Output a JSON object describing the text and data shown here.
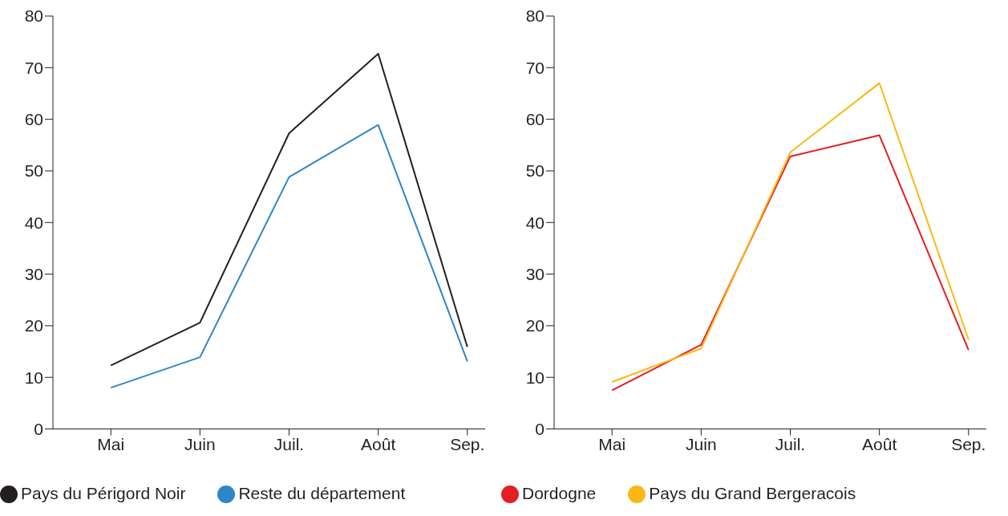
{
  "chart_data": [
    {
      "type": "line",
      "categories": [
        "Mai",
        "Juin",
        "Juil.",
        "Août",
        "Sep."
      ],
      "ylim": [
        0,
        80
      ],
      "yticks": [
        0,
        10,
        20,
        30,
        40,
        50,
        60,
        70,
        80
      ],
      "grid": false,
      "legend": "bottom left",
      "marker": "none",
      "line_style": "solid",
      "series": [
        {
          "name": "Pays du Périgord Noir",
          "color": "#231f20",
          "values": [
            12.3,
            20.6,
            57.3,
            72.7,
            15.9
          ]
        },
        {
          "name": "Reste du département",
          "color": "#2e86c8",
          "values": [
            8.0,
            13.9,
            48.8,
            58.9,
            13.1
          ]
        }
      ]
    },
    {
      "type": "line",
      "categories": [
        "Mai",
        "Juin",
        "Juil.",
        "Août",
        "Sep."
      ],
      "ylim": [
        0,
        80
      ],
      "yticks": [
        0,
        10,
        20,
        30,
        40,
        50,
        60,
        70,
        80
      ],
      "grid": false,
      "legend": "bottom left",
      "marker": "none",
      "line_style": "solid",
      "series": [
        {
          "name": "Dordogne",
          "color": "#e31e24",
          "values": [
            7.5,
            16.3,
            52.8,
            56.9,
            15.3
          ]
        },
        {
          "name": "Pays du Grand Bergeracois",
          "color": "#fbb814",
          "values": [
            9.1,
            15.6,
            53.6,
            67.0,
            17.3
          ]
        }
      ]
    }
  ]
}
